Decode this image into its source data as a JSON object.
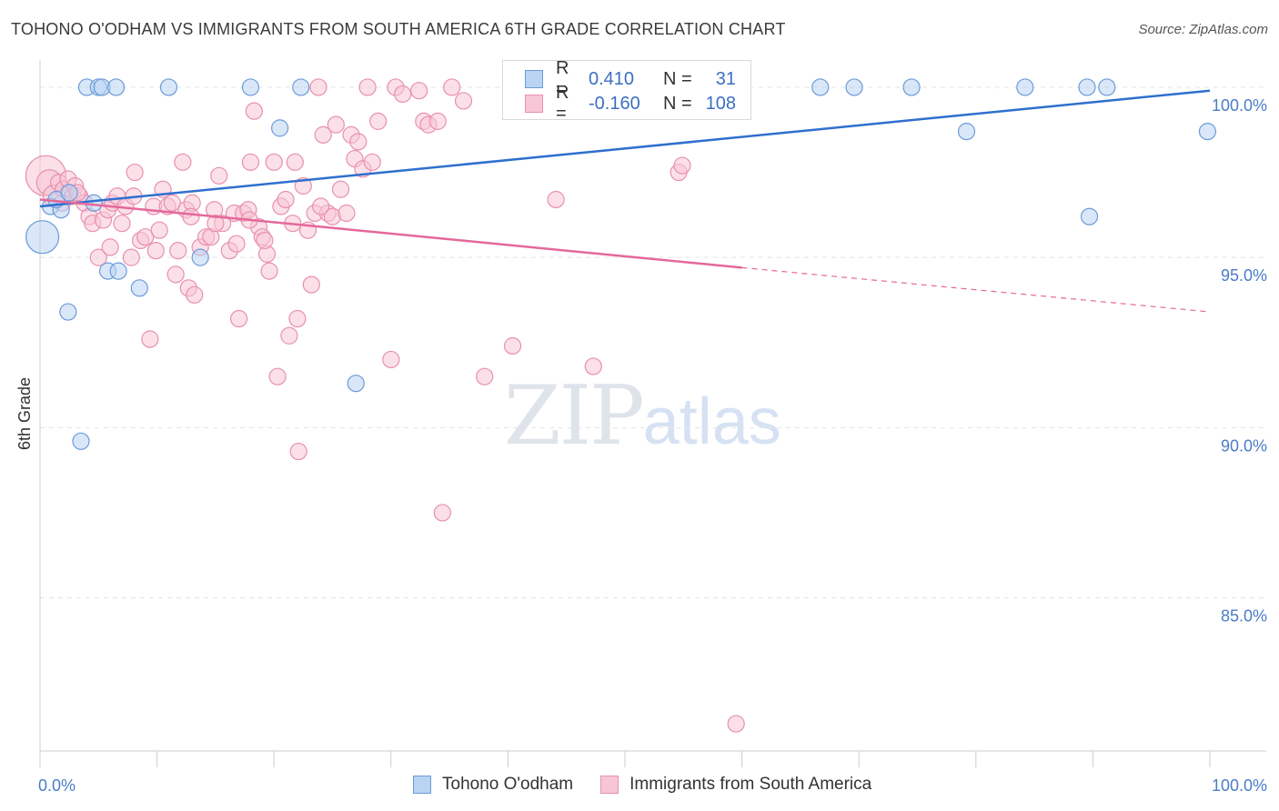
{
  "title": "TOHONO O'ODHAM VS IMMIGRANTS FROM SOUTH AMERICA 6TH GRADE CORRELATION CHART",
  "source": "Source: ZipAtlas.com",
  "watermark": {
    "zip": "ZIP",
    "atlas": "atlas"
  },
  "legend": {
    "rows": [
      {
        "r_label": "R =",
        "r_value": "0.410",
        "n_label": "N =",
        "n_value": "31"
      },
      {
        "r_label": "R =",
        "r_value": "-0.160",
        "n_label": "N =",
        "n_value": "108"
      }
    ]
  },
  "bottom_legend": [
    "Tohono O'odham",
    "Immigrants from South America"
  ],
  "colors": {
    "blue_fill": "#b9d3f3",
    "blue_stroke": "#6c9bd8",
    "blue_line": "#2f6fcf",
    "pink_fill": "#f7c6d6",
    "pink_stroke": "#e890ae",
    "pink_line": "#e4689a",
    "tick_text": "#4a7cc7",
    "grid": "#e3e3e3"
  },
  "chart_data": {
    "type": "scatter",
    "title": "TOHONO O'ODHAM VS IMMIGRANTS FROM SOUTH AMERICA 6TH GRADE CORRELATION CHART",
    "xlabel": "",
    "ylabel": "6th Grade",
    "xlim": [
      0,
      100
    ],
    "ylim": [
      80.5,
      100.8
    ],
    "x_tick_labels": [
      "0.0%",
      "100.0%"
    ],
    "y_ticks": [
      85,
      90,
      95,
      100
    ],
    "y_tick_labels": [
      "85.0%",
      "90.0%",
      "95.0%",
      "100.0%"
    ],
    "grid": true,
    "legend_position": "top-center",
    "series": [
      {
        "name": "Tohono O'odham",
        "color": "blue",
        "r": 0.41,
        "n": 31,
        "trend": {
          "x": [
            0,
            100
          ],
          "y": [
            96.5,
            99.9
          ]
        },
        "points": [
          [
            0.2,
            95.6,
            18
          ],
          [
            0.9,
            96.5,
            10
          ],
          [
            1.8,
            96.4,
            10
          ],
          [
            1.4,
            96.7,
            10
          ],
          [
            2.5,
            96.9,
            10
          ],
          [
            3.5,
            89.6,
            10
          ],
          [
            4.0,
            100.0,
            10
          ],
          [
            5.0,
            100.0,
            10
          ],
          [
            5.3,
            100.0,
            10
          ],
          [
            6.5,
            100.0,
            10
          ],
          [
            4.6,
            96.6,
            10
          ],
          [
            5.8,
            94.6,
            10
          ],
          [
            6.7,
            94.6,
            10
          ],
          [
            8.5,
            94.1,
            10
          ],
          [
            2.4,
            93.4,
            10
          ],
          [
            11.0,
            100.0,
            10
          ],
          [
            18.0,
            100.0,
            10
          ],
          [
            22.3,
            100.0,
            10
          ],
          [
            20.5,
            98.8,
            10
          ],
          [
            13.7,
            95.0,
            10
          ],
          [
            27.0,
            91.3,
            10
          ],
          [
            47.5,
            100.0,
            10
          ],
          [
            66.7,
            100.0,
            10
          ],
          [
            69.6,
            100.0,
            10
          ],
          [
            74.5,
            100.0,
            10
          ],
          [
            84.2,
            100.0,
            10
          ],
          [
            89.5,
            100.0,
            10
          ],
          [
            91.2,
            100.0,
            10
          ],
          [
            79.2,
            98.7,
            10
          ],
          [
            89.7,
            96.2,
            10
          ],
          [
            99.8,
            98.7,
            10
          ]
        ]
      },
      {
        "name": "Immigrants from South America",
        "color": "pink",
        "r": -0.16,
        "n": 108,
        "trend": {
          "x": [
            0,
            60
          ],
          "y": [
            96.7,
            94.7
          ]
        },
        "trend_dashed": {
          "x": [
            60,
            100
          ],
          "y": [
            94.7,
            93.4
          ]
        },
        "points": [
          [
            0.5,
            97.4,
            22
          ],
          [
            0.8,
            97.2,
            14
          ],
          [
            1.2,
            96.8,
            12
          ],
          [
            1.6,
            97.2,
            10
          ],
          [
            2.0,
            97.0,
            10
          ],
          [
            2.4,
            97.3,
            10
          ],
          [
            2.8,
            96.8,
            10
          ],
          [
            3.0,
            97.1,
            10
          ],
          [
            3.4,
            96.8,
            10
          ],
          [
            3.8,
            96.6,
            10
          ],
          [
            4.2,
            96.2,
            10
          ],
          [
            4.5,
            96.0,
            10
          ],
          [
            5.0,
            95.0,
            10
          ],
          [
            5.4,
            96.1,
            10
          ],
          [
            5.8,
            96.4,
            10
          ],
          [
            6.2,
            96.6,
            10
          ],
          [
            6.6,
            96.8,
            10
          ],
          [
            7.0,
            96.0,
            10
          ],
          [
            7.3,
            96.5,
            10
          ],
          [
            7.8,
            95.0,
            10
          ],
          [
            8.1,
            97.5,
            10
          ],
          [
            8.6,
            95.5,
            10
          ],
          [
            9.0,
            95.6,
            10
          ],
          [
            9.4,
            92.6,
            10
          ],
          [
            9.7,
            96.5,
            10
          ],
          [
            10.2,
            95.8,
            10
          ],
          [
            10.5,
            97.0,
            10
          ],
          [
            10.9,
            96.5,
            10
          ],
          [
            11.3,
            96.6,
            10
          ],
          [
            11.6,
            94.5,
            10
          ],
          [
            11.8,
            95.2,
            10
          ],
          [
            12.2,
            97.8,
            10
          ],
          [
            12.5,
            96.4,
            10
          ],
          [
            12.7,
            94.1,
            10
          ],
          [
            13.0,
            96.6,
            10
          ],
          [
            13.2,
            93.9,
            10
          ],
          [
            13.7,
            95.3,
            10
          ],
          [
            14.2,
            95.6,
            10
          ],
          [
            14.6,
            95.6,
            10
          ],
          [
            14.9,
            96.4,
            10
          ],
          [
            15.3,
            97.4,
            10
          ],
          [
            15.6,
            96.0,
            10
          ],
          [
            16.2,
            95.2,
            10
          ],
          [
            16.6,
            96.3,
            10
          ],
          [
            17.0,
            93.2,
            10
          ],
          [
            17.4,
            96.3,
            10
          ],
          [
            17.8,
            96.4,
            10
          ],
          [
            18.0,
            97.8,
            10
          ],
          [
            18.3,
            99.3,
            10
          ],
          [
            18.7,
            95.9,
            10
          ],
          [
            19.0,
            95.6,
            10
          ],
          [
            19.4,
            95.1,
            10
          ],
          [
            19.6,
            94.6,
            10
          ],
          [
            20.0,
            97.8,
            10
          ],
          [
            20.3,
            91.5,
            10
          ],
          [
            20.6,
            96.5,
            10
          ],
          [
            21.0,
            96.7,
            10
          ],
          [
            21.3,
            92.7,
            10
          ],
          [
            21.8,
            97.8,
            10
          ],
          [
            22.0,
            93.2,
            10
          ],
          [
            22.5,
            97.1,
            10
          ],
          [
            22.9,
            95.8,
            10
          ],
          [
            23.2,
            94.2,
            10
          ],
          [
            23.5,
            96.3,
            10
          ],
          [
            23.8,
            100.0,
            10
          ],
          [
            24.2,
            98.6,
            10
          ],
          [
            24.6,
            96.3,
            10
          ],
          [
            25.0,
            96.2,
            10
          ],
          [
            25.3,
            98.9,
            10
          ],
          [
            25.7,
            97.0,
            10
          ],
          [
            26.2,
            96.3,
            10
          ],
          [
            26.6,
            98.6,
            10
          ],
          [
            26.9,
            97.9,
            10
          ],
          [
            27.2,
            98.4,
            10
          ],
          [
            27.6,
            97.6,
            10
          ],
          [
            28.0,
            100.0,
            10
          ],
          [
            28.4,
            97.8,
            10
          ],
          [
            28.9,
            99.0,
            10
          ],
          [
            30.0,
            92.0,
            10
          ],
          [
            30.4,
            100.0,
            10
          ],
          [
            31.0,
            99.8,
            10
          ],
          [
            32.4,
            99.9,
            10
          ],
          [
            32.8,
            99.0,
            10
          ],
          [
            33.2,
            98.9,
            10
          ],
          [
            34.0,
            99.0,
            10
          ],
          [
            34.4,
            87.5,
            10
          ],
          [
            35.2,
            100.0,
            10
          ],
          [
            36.2,
            99.6,
            10
          ],
          [
            38.0,
            91.5,
            10
          ],
          [
            40.4,
            92.4,
            10
          ],
          [
            44.1,
            96.7,
            10
          ],
          [
            47.3,
            91.8,
            10
          ],
          [
            54.6,
            97.5,
            10
          ],
          [
            54.9,
            97.7,
            10
          ],
          [
            59.5,
            81.3,
            10
          ],
          [
            22.1,
            89.3,
            10
          ],
          [
            1.9,
            96.6,
            10
          ],
          [
            3.2,
            96.9,
            10
          ],
          [
            6.0,
            95.3,
            10
          ],
          [
            8.0,
            96.8,
            10
          ],
          [
            9.9,
            95.2,
            10
          ],
          [
            12.9,
            96.2,
            10
          ],
          [
            15.0,
            96.0,
            10
          ],
          [
            16.8,
            95.4,
            10
          ],
          [
            17.9,
            96.1,
            10
          ],
          [
            19.2,
            95.5,
            10
          ],
          [
            21.6,
            96.0,
            10
          ],
          [
            24.0,
            96.5,
            10
          ]
        ]
      }
    ]
  }
}
